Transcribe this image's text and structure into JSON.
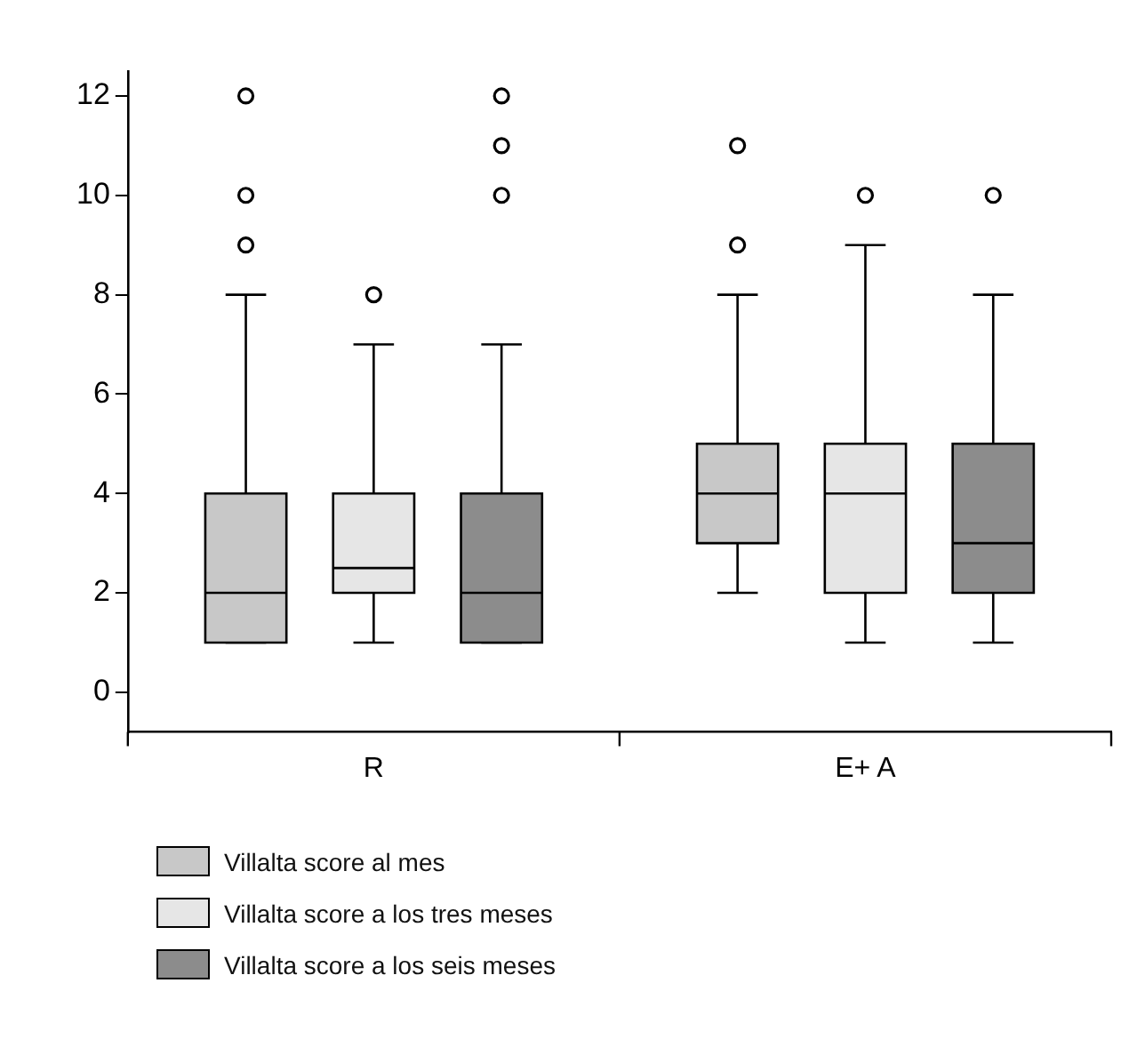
{
  "chart_data": {
    "type": "box",
    "categories": [
      "R",
      "E+ A"
    ],
    "series": [
      {
        "name": "Villalta score al mes",
        "color": "#c8c8c8",
        "boxes": [
          {
            "low": 1,
            "q1": 1,
            "median": 2,
            "q3": 4,
            "high": 8,
            "outliers": [
              9,
              10,
              12
            ]
          },
          {
            "low": 2,
            "q1": 3,
            "median": 4,
            "q3": 5,
            "high": 8,
            "outliers": [
              9,
              11
            ]
          }
        ]
      },
      {
        "name": "Villalta score a los tres meses",
        "color": "#e6e6e6",
        "boxes": [
          {
            "low": 1,
            "q1": 2,
            "median": 2.5,
            "q3": 4,
            "high": 7,
            "outliers": [
              8
            ]
          },
          {
            "low": 1,
            "q1": 2,
            "median": 4,
            "q3": 5,
            "high": 9,
            "outliers": [
              10
            ]
          }
        ]
      },
      {
        "name": "Villalta score a los seis meses",
        "color": "#8c8c8c",
        "boxes": [
          {
            "low": 1,
            "q1": 1,
            "median": 2,
            "q3": 4,
            "high": 7,
            "outliers": [
              10,
              11,
              12
            ]
          },
          {
            "low": 1,
            "q1": 2,
            "median": 3,
            "q3": 5,
            "high": 8,
            "outliers": [
              10
            ]
          }
        ]
      }
    ],
    "ylim": [
      -0.8,
      12.5
    ],
    "yticks": [
      0,
      2,
      4,
      6,
      8,
      10,
      12
    ],
    "grid": false,
    "legend": "bottom left",
    "marker": "circle"
  }
}
